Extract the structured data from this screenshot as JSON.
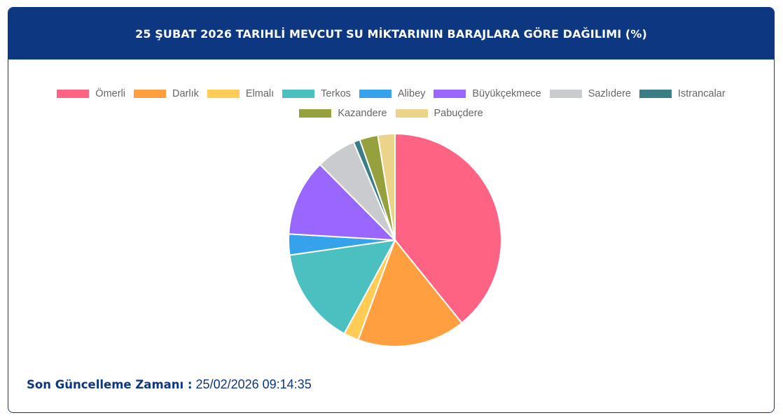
{
  "header": {
    "title": "25 ŞUBAT 2026 TARIHLİ MEVCUT SU MİKTARININ BARAJLARA GÖRE DAĞILIMI (%)"
  },
  "chart_data": {
    "type": "pie",
    "title": "25 ŞUBAT 2026 TARIHLİ MEVCUT SU MİKTARININ BARAJLARA GÖRE DAĞILIMI (%)",
    "categories": [
      "Ömerli",
      "Darlık",
      "Elmalı",
      "Terkos",
      "Alibey",
      "Büyükçekmece",
      "Sazlıdere",
      "Istrancalar",
      "Kazandere",
      "Pabuçdere"
    ],
    "values": [
      39.4,
      16.5,
      2.3,
      14.9,
      3.2,
      11.7,
      6.1,
      1.0,
      2.8,
      2.6
    ],
    "colors": [
      "#ff6384",
      "#ff9f40",
      "#ffcd56",
      "#4bc0c0",
      "#36a2eb",
      "#9966ff",
      "#c9cbcf",
      "#3b7d84",
      "#96a03c",
      "#ecd38a"
    ],
    "legend_position": "top",
    "start_angle": "top, clockwise"
  },
  "footer": {
    "label": "Son Güncelleme Zamanı :",
    "value": "25/02/2026 09:14:35"
  }
}
